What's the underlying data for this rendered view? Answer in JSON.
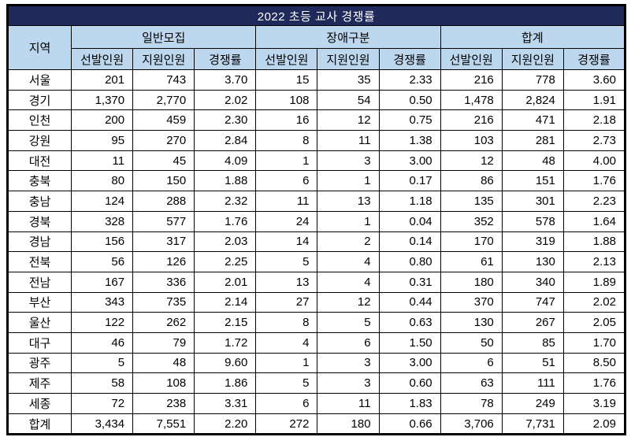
{
  "title": "2022 초등 교사 경쟁률",
  "colors": {
    "title_bg": "#1F2A5B",
    "title_text": "#FFFFFF",
    "header_bg": "#BDD7EE",
    "border": "#000000",
    "text": "#000000"
  },
  "chart_data": {
    "type": "table",
    "title": "2022 초등 교사 경쟁률",
    "header": {
      "region": "지역",
      "groups": [
        {
          "label": "일반모집",
          "cols": [
            "선발인원",
            "지원인원",
            "경쟁률"
          ]
        },
        {
          "label": "장애구분",
          "cols": [
            "선발인원",
            "지원인원",
            "경쟁률"
          ]
        },
        {
          "label": "합계",
          "cols": [
            "선발인원",
            "지원인원",
            "경쟁률"
          ]
        }
      ]
    },
    "rows": [
      {
        "region": "서울",
        "values": [
          "201",
          "743",
          "3.70",
          "15",
          "35",
          "2.33",
          "216",
          "778",
          "3.60"
        ]
      },
      {
        "region": "경기",
        "values": [
          "1,370",
          "2,770",
          "2.02",
          "108",
          "54",
          "0.50",
          "1,478",
          "2,824",
          "1.91"
        ]
      },
      {
        "region": "인천",
        "values": [
          "200",
          "459",
          "2.30",
          "16",
          "12",
          "0.75",
          "216",
          "471",
          "2.18"
        ]
      },
      {
        "region": "강원",
        "values": [
          "95",
          "270",
          "2.84",
          "8",
          "11",
          "1.38",
          "103",
          "281",
          "2.73"
        ]
      },
      {
        "region": "대전",
        "values": [
          "11",
          "45",
          "4.09",
          "1",
          "3",
          "3.00",
          "12",
          "48",
          "4.00"
        ]
      },
      {
        "region": "충북",
        "values": [
          "80",
          "150",
          "1.88",
          "6",
          "1",
          "0.17",
          "86",
          "151",
          "1.76"
        ]
      },
      {
        "region": "충남",
        "values": [
          "124",
          "288",
          "2.32",
          "11",
          "13",
          "1.18",
          "135",
          "301",
          "2.23"
        ]
      },
      {
        "region": "경북",
        "values": [
          "328",
          "577",
          "1.76",
          "24",
          "1",
          "0.04",
          "352",
          "578",
          "1.64"
        ]
      },
      {
        "region": "경남",
        "values": [
          "156",
          "317",
          "2.03",
          "14",
          "2",
          "0.14",
          "170",
          "319",
          "1.88"
        ]
      },
      {
        "region": "전북",
        "values": [
          "56",
          "126",
          "2.25",
          "5",
          "4",
          "0.80",
          "61",
          "130",
          "2.13"
        ]
      },
      {
        "region": "전남",
        "values": [
          "167",
          "336",
          "2.01",
          "13",
          "4",
          "0.31",
          "180",
          "340",
          "1.89"
        ]
      },
      {
        "region": "부산",
        "values": [
          "343",
          "735",
          "2.14",
          "27",
          "12",
          "0.44",
          "370",
          "747",
          "2.02"
        ]
      },
      {
        "region": "울산",
        "values": [
          "122",
          "262",
          "2.15",
          "8",
          "5",
          "0.63",
          "130",
          "267",
          "2.05"
        ]
      },
      {
        "region": "대구",
        "values": [
          "46",
          "79",
          "1.72",
          "4",
          "6",
          "1.50",
          "50",
          "85",
          "1.70"
        ]
      },
      {
        "region": "광주",
        "values": [
          "5",
          "48",
          "9.60",
          "1",
          "3",
          "3.00",
          "6",
          "51",
          "8.50"
        ]
      },
      {
        "region": "제주",
        "values": [
          "58",
          "108",
          "1.86",
          "5",
          "3",
          "0.60",
          "63",
          "111",
          "1.76"
        ]
      },
      {
        "region": "세종",
        "values": [
          "72",
          "238",
          "3.31",
          "6",
          "11",
          "1.83",
          "78",
          "249",
          "3.19"
        ]
      },
      {
        "region": "합계",
        "values": [
          "3,434",
          "7,551",
          "2.20",
          "272",
          "180",
          "0.66",
          "3,706",
          "7,731",
          "2.09"
        ]
      }
    ]
  }
}
